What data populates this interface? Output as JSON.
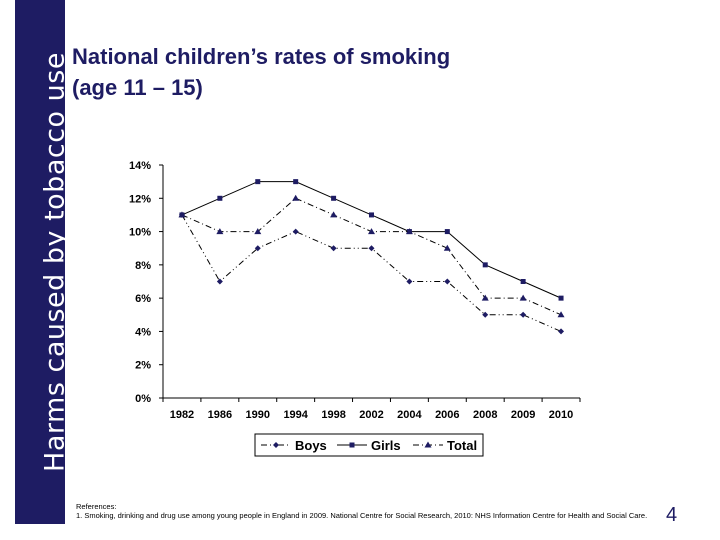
{
  "side_title": "Harms caused by tobacco use",
  "title": {
    "line1": "National children’s rates of smoking",
    "line2": "(age 11 – 15)"
  },
  "chart_data": {
    "type": "line",
    "categories": [
      "1982",
      "1986",
      "1990",
      "1994",
      "1998",
      "2002",
      "2004",
      "2006",
      "2008",
      "2009",
      "2010"
    ],
    "series": [
      {
        "name": "Boys",
        "values": [
          11,
          7,
          9,
          10,
          9,
          9,
          7,
          7,
          5,
          5,
          4
        ],
        "color": "#000000",
        "marker": "diamond",
        "dash": "dash-dot-dot"
      },
      {
        "name": "Girls",
        "values": [
          11,
          12,
          13,
          13,
          12,
          11,
          10,
          10,
          8,
          7,
          6
        ],
        "color": "#000000",
        "marker": "square",
        "dash": "solid"
      },
      {
        "name": "Total",
        "values": [
          11,
          10,
          10,
          12,
          11,
          10,
          10,
          9,
          6,
          6,
          5
        ],
        "color": "#000000",
        "marker": "triangle",
        "dash": "dash-dot"
      }
    ],
    "ylim": [
      0,
      14
    ],
    "yticks": [
      "0%",
      "2%",
      "4%",
      "6%",
      "8%",
      "10%",
      "12%",
      "14%"
    ],
    "grid": false,
    "legend_position": "bottom"
  },
  "references": {
    "heading": "References:",
    "text": "1. Smoking, drinking and drug use among young people in England in 2009. National Centre for Social Research, 2010: NHS Information Centre for Health and Social Care."
  },
  "page_number": "4",
  "colors": {
    "band": "#1e1c63",
    "title": "#1e1c63"
  }
}
